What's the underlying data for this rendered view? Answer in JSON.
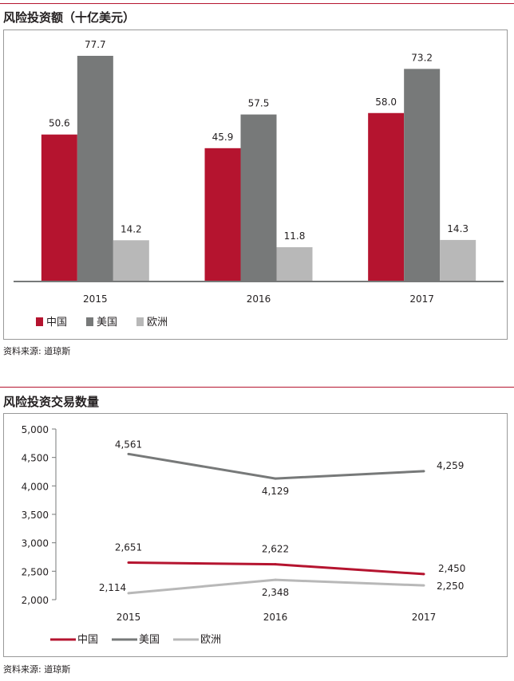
{
  "colors": {
    "china": "#b5142f",
    "usa": "#777979",
    "europe": "#b8b8b8",
    "rule": "#b5142f"
  },
  "chart1_title": "风险投资额（十亿美元）",
  "chart2_title": "风险投资交易数量",
  "source1": "资料来源: 道琼斯",
  "source2": "资料来源: 道琼斯",
  "chart_data": [
    {
      "type": "bar",
      "title": "风险投资额（十亿美元）",
      "categories": [
        "2015",
        "2016",
        "2017"
      ],
      "series": [
        {
          "name": "中国",
          "values": [
            50.6,
            45.9,
            58.0
          ],
          "labels": [
            "50.6",
            "45.9",
            "58.0"
          ],
          "color": "#b5142f"
        },
        {
          "name": "美国",
          "values": [
            77.7,
            57.5,
            73.2
          ],
          "labels": [
            "77.7",
            "57.5",
            "73.2"
          ],
          "color": "#777979"
        },
        {
          "name": "欧洲",
          "values": [
            14.2,
            11.8,
            14.3
          ],
          "labels": [
            "14.2",
            "11.8",
            "14.3"
          ],
          "color": "#b8b8b8"
        }
      ],
      "ylim": [
        0,
        77.7
      ],
      "grid": false,
      "legend": "bottom-left"
    },
    {
      "type": "line",
      "title": "风险投资交易数量",
      "categories": [
        "2015",
        "2016",
        "2017"
      ],
      "series": [
        {
          "name": "中国",
          "values": [
            2651,
            2622,
            2450
          ],
          "labels": [
            "2,651",
            "2,622",
            "2,450"
          ],
          "color": "#b5142f"
        },
        {
          "name": "美国",
          "values": [
            4561,
            4129,
            4259
          ],
          "labels": [
            "4,561",
            "4,129",
            "4,259"
          ],
          "color": "#777979"
        },
        {
          "name": "欧洲",
          "values": [
            2114,
            2348,
            2250
          ],
          "labels": [
            "2,114",
            "2,348",
            "2,250"
          ],
          "color": "#b8b8b8"
        }
      ],
      "yticks": [
        "2,000",
        "2,500",
        "3,000",
        "3,500",
        "4,000",
        "4,500",
        "5,000"
      ],
      "ylim": [
        2000,
        5000
      ],
      "grid": false,
      "legend": "bottom-left"
    }
  ]
}
